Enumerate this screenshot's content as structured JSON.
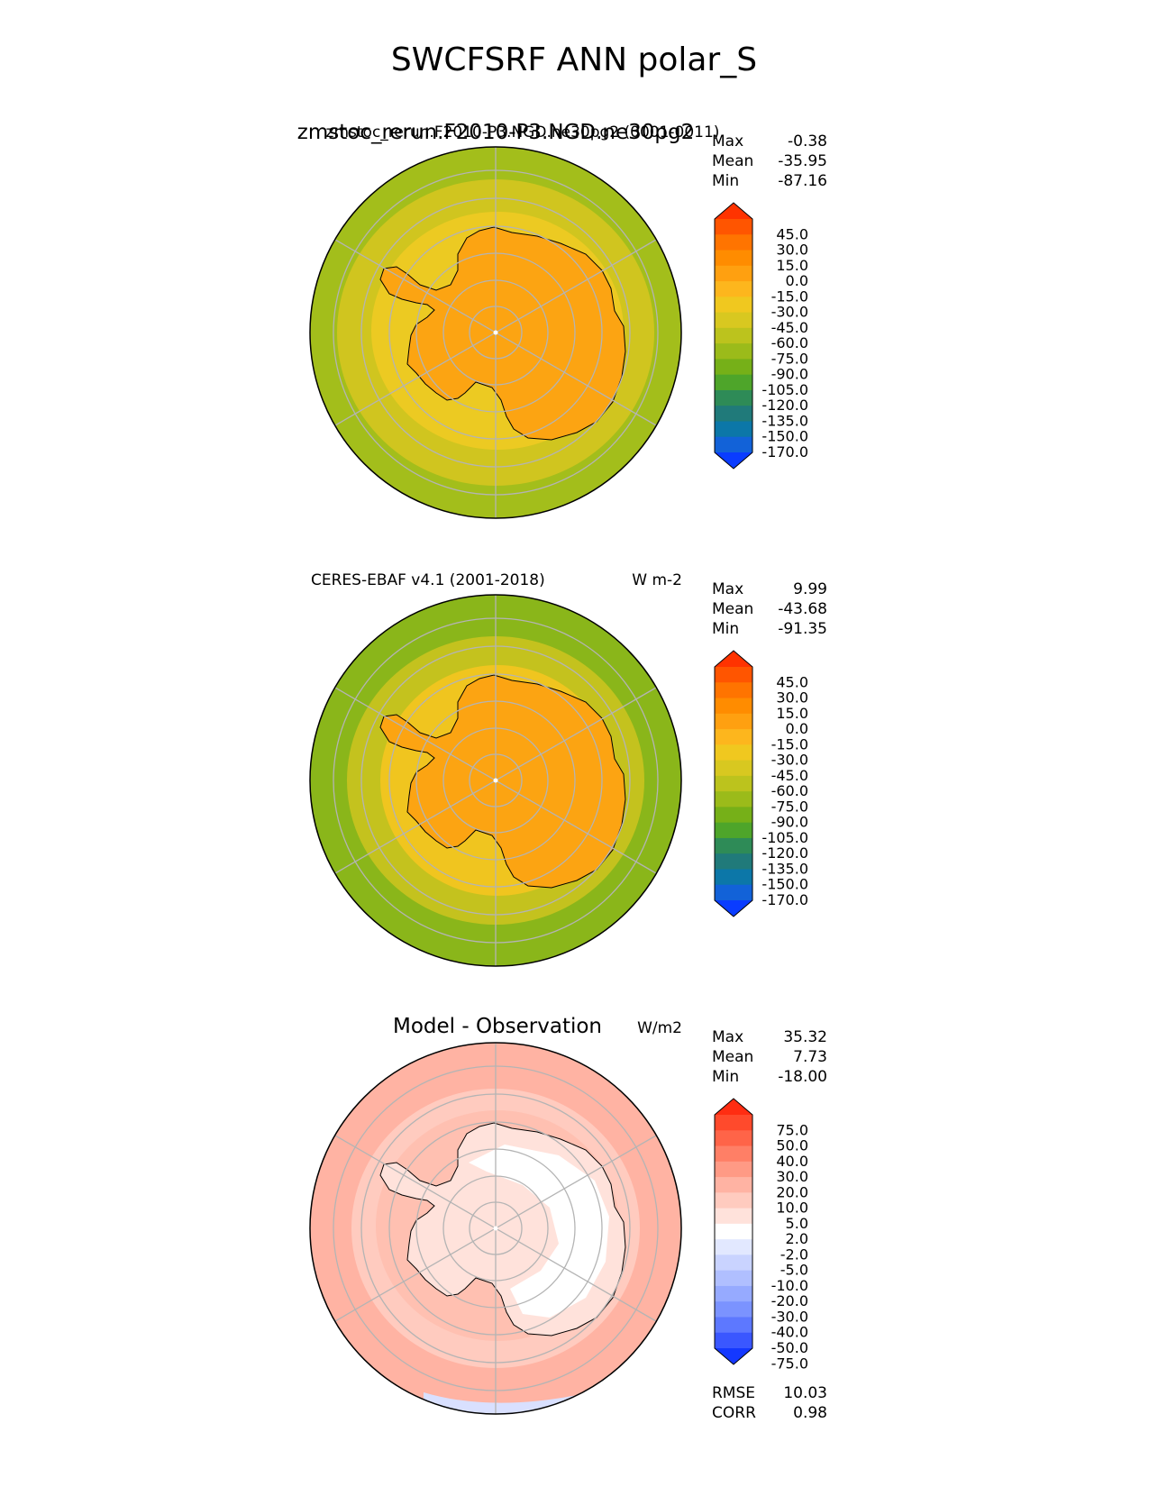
{
  "figure_title": "SWCFSRF ANN polar_S",
  "chart_data": [
    {
      "type": "heatmap",
      "projection": "south-polar-stereographic",
      "title_overlapped": "zmstoc_rerun.F2010-P3.NGD.ne30pg2",
      "subtitle": "zmstoc_rerun.F2010-P3.NGD.ne30pg2 (0001-0011)",
      "units": "W m-2",
      "stats": {
        "max_label": "Max",
        "max": "-0.38",
        "mean_label": "Mean",
        "mean": "-35.95",
        "min_label": "Min",
        "min": "-87.16"
      },
      "colorbar": {
        "levels": [
          "45.0",
          "30.0",
          "15.0",
          "0.0",
          "-15.0",
          "-30.0",
          "-45.0",
          "-60.0",
          "-75.0",
          "-90.0",
          "-105.0",
          "-120.0",
          "-135.0",
          "-150.0",
          "-170.0"
        ],
        "colors": [
          "#ff3300",
          "#ff5500",
          "#ff7400",
          "#ff8c00",
          "#ffa010",
          "#fdb61d",
          "#f0c81f",
          "#d8c820",
          "#bcc31d",
          "#9bbb1a",
          "#76b018",
          "#4ea52a",
          "#2e8b57",
          "#207a7a",
          "#0c77a8",
          "#1262d8",
          "#0a3cff"
        ]
      },
      "regions": {
        "ocean_outer": "#a3be1b",
        "ocean_mid": "#d0c51f",
        "sea_ice_zone": "#ecca22",
        "antarctica": "#fca412",
        "outer_ring_dark": "#7eb219"
      }
    },
    {
      "type": "heatmap",
      "projection": "south-polar-stereographic",
      "title": "CERES-EBAF v4.1 (2001-2018)",
      "units": "W m-2",
      "stats": {
        "max_label": "Max",
        "max": "9.99",
        "mean_label": "Mean",
        "mean": "-43.68",
        "min_label": "Min",
        "min": "-91.35"
      },
      "colorbar": {
        "levels": [
          "45.0",
          "30.0",
          "15.0",
          "0.0",
          "-15.0",
          "-30.0",
          "-45.0",
          "-60.0",
          "-75.0",
          "-90.0",
          "-105.0",
          "-120.0",
          "-135.0",
          "-150.0",
          "-170.0"
        ],
        "colors": [
          "#ff3300",
          "#ff5500",
          "#ff7400",
          "#ff8c00",
          "#ffa010",
          "#fdb61d",
          "#f0c81f",
          "#d8c820",
          "#bcc31d",
          "#9bbb1a",
          "#76b018",
          "#4ea52a",
          "#2e8b57",
          "#207a7a",
          "#0c77a8",
          "#1262d8",
          "#0a3cff"
        ]
      },
      "regions": {
        "ocean_outer": "#8ab61a",
        "ocean_mid": "#c4c21e",
        "sea_ice_zone": "#f0c51f",
        "antarctica": "#fca412",
        "outer_ring_dark": "#72ad18"
      }
    },
    {
      "type": "heatmap",
      "projection": "south-polar-stereographic",
      "title": "Model - Observation",
      "units": "W/m2",
      "stats": {
        "max_label": "Max",
        "max": "35.32",
        "mean_label": "Mean",
        "mean": "7.73",
        "min_label": "Min",
        "min": "-18.00"
      },
      "colorbar": {
        "levels": [
          "75.0",
          "50.0",
          "40.0",
          "30.0",
          "20.0",
          "10.0",
          "5.0",
          "2.0",
          "-2.0",
          "-5.0",
          "-10.0",
          "-20.0",
          "-30.0",
          "-40.0",
          "-50.0",
          "-75.0"
        ],
        "colors": [
          "#ff2d12",
          "#ff4a2c",
          "#ff6448",
          "#ff7f66",
          "#ff9a85",
          "#ffb3a3",
          "#ffcbbf",
          "#ffe2db",
          "#ffffff",
          "#e2e8ff",
          "#c9d3ff",
          "#b0bfff",
          "#96aaff",
          "#7b93ff",
          "#5d78ff",
          "#3a57ff",
          "#1438ff"
        ]
      },
      "regions": {
        "ocean_outer": "#ffb3a3",
        "ocean_mid": "#ffcbbf",
        "sea_ice_zone": "#ffc0b1",
        "antarctica": "#ffe2db",
        "antarctica_interior": "#ffffff",
        "negative_patch": "#d9e0ff"
      },
      "extra_stats": {
        "rmse_label": "RMSE",
        "rmse": "10.03",
        "corr_label": "CORR",
        "corr": "0.98"
      }
    }
  ]
}
